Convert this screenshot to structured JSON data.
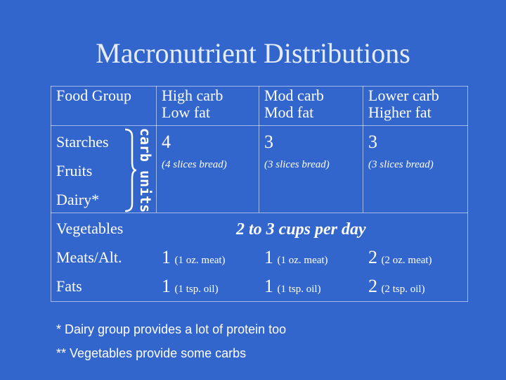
{
  "title": "Macronutrient Distributions",
  "table": {
    "header": {
      "food_group": "Food Group",
      "col1_line1": "High carb",
      "col1_line2": "Low fat",
      "col2_line1": "Mod carb",
      "col2_line2": "Mod fat",
      "col3_line1": "Lower carb",
      "col3_line2": "Higher fat"
    },
    "groups": {
      "starches": "Starches",
      "fruits": "Fruits",
      "dairy": "Dairy*",
      "vegetables": "Vegetables",
      "meats": "Meats/Alt.",
      "fats": "Fats"
    },
    "carb_units_label": "carb units",
    "carb_row": {
      "col1_value": "4",
      "col1_unit": "(4 slices bread)",
      "col2_value": "3",
      "col2_unit": "(3 slices bread)",
      "col3_value": "3",
      "col3_unit": "(3 slices bread)"
    },
    "vegetables_value": "2 to 3 cups per day",
    "meats_row": {
      "col1_value": "1",
      "col1_unit": "(1 oz. meat)",
      "col2_value": "1",
      "col2_unit": "(1 oz. meat)",
      "col3_value": "2",
      "col3_unit": "(2 oz. meat)"
    },
    "fats_row": {
      "col1_value": "1",
      "col1_unit": "(1 tsp. oil)",
      "col2_value": "1",
      "col2_unit": "(1 tsp. oil)",
      "col3_value": "2",
      "col3_unit": "(2 tsp. oil)"
    }
  },
  "notes": {
    "dairy_note": "* Dairy group provides a lot of protein too",
    "veg_note": "** Vegetables provide some carbs"
  },
  "colors": {
    "background": "#3366cc",
    "text": "#ffffff"
  }
}
